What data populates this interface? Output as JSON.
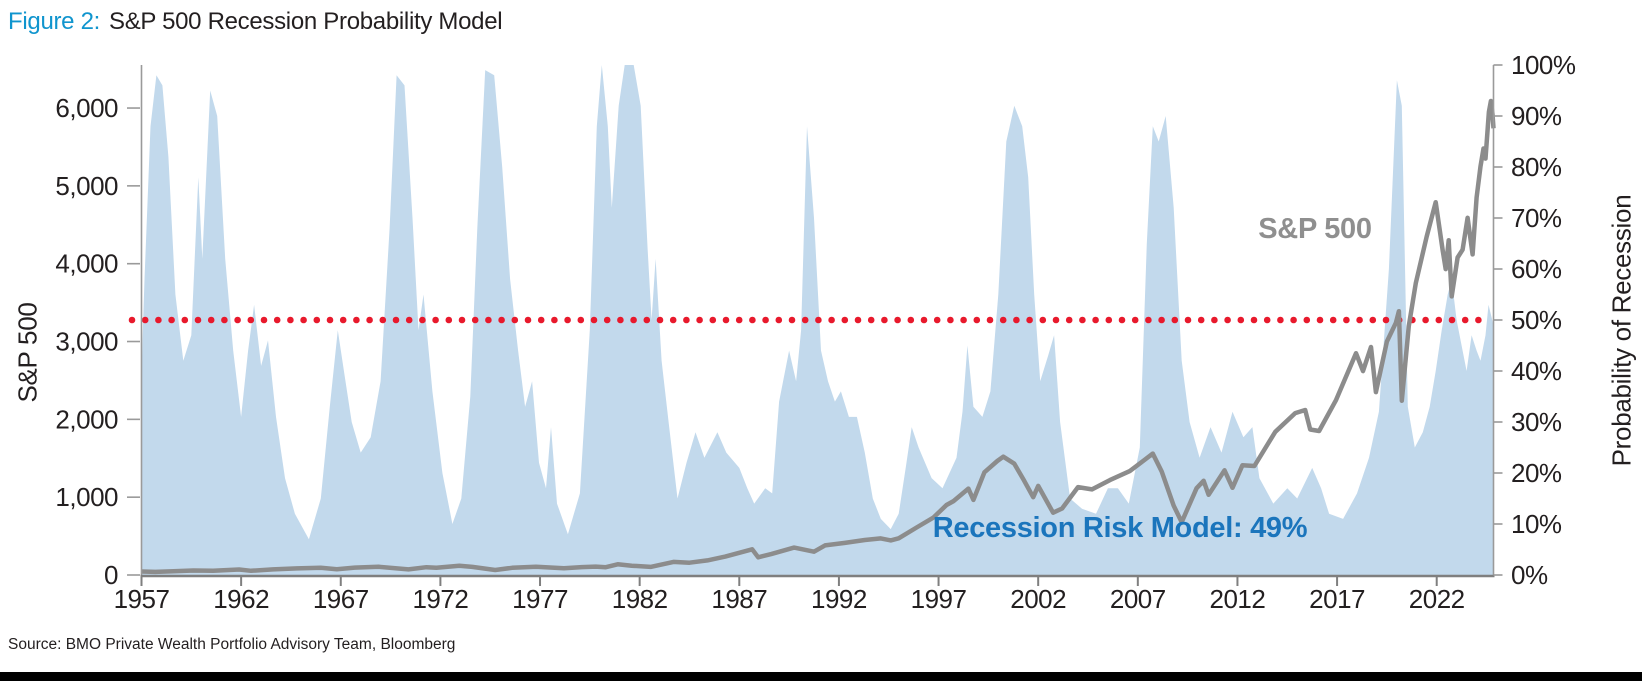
{
  "header": {
    "figure_label": "Figure 2:",
    "title": "S&P 500 Recession Probability Model"
  },
  "annotations": {
    "sp500_label": "S&P 500",
    "model_label": "Recession Risk Model: 49%"
  },
  "source": {
    "text": "Source: BMO Private Wealth Portfolio Advisory Team, Bloomberg"
  },
  "colors": {
    "area_blue": "#c2d9ec",
    "sp500_gray": "#8c8c8c",
    "threshold_red": "#e8192c",
    "figure_label_blue": "#1095ce",
    "model_label_blue": "#1b75bc",
    "axis_line_gray": "#7f7f7f",
    "text_dark": "#231f20"
  },
  "chart_data": {
    "type": "area+line",
    "title": "S&P 500 Recession Probability Model",
    "x_domain": [
      1957,
      2024.85
    ],
    "x_ticks": [
      1957,
      1962,
      1967,
      1972,
      1977,
      1982,
      1987,
      1992,
      1997,
      2002,
      2007,
      2012,
      2017,
      2022
    ],
    "grid": false,
    "left_axis": {
      "title": "S&P 500",
      "max_value": 6553,
      "ticks": [
        0,
        1000,
        2000,
        3000,
        4000,
        5000,
        6000
      ]
    },
    "right_axis": {
      "title": "Probability of Recession",
      "max_value": 100,
      "ticks": [
        0,
        10,
        20,
        30,
        40,
        50,
        60,
        70,
        80,
        90,
        100
      ]
    },
    "threshold_pct": 50,
    "final_values": {
      "recession_probability_pct": 49
    },
    "series": [
      {
        "name": "Recession Risk Model probability (%)",
        "type": "area",
        "axis": "right",
        "color": "#c2d9ec",
        "points": [
          [
            1957.0,
            40
          ],
          [
            1957.15,
            58
          ],
          [
            1957.45,
            88
          ],
          [
            1957.75,
            98
          ],
          [
            1958.05,
            96
          ],
          [
            1958.35,
            82
          ],
          [
            1958.7,
            55
          ],
          [
            1959.1,
            42
          ],
          [
            1959.5,
            47
          ],
          [
            1959.85,
            78
          ],
          [
            1960.05,
            62
          ],
          [
            1960.45,
            95
          ],
          [
            1960.8,
            90
          ],
          [
            1961.2,
            62
          ],
          [
            1961.6,
            44
          ],
          [
            1962.0,
            31
          ],
          [
            1962.35,
            44
          ],
          [
            1962.65,
            53
          ],
          [
            1963.0,
            41
          ],
          [
            1963.35,
            46
          ],
          [
            1963.75,
            31
          ],
          [
            1964.2,
            19
          ],
          [
            1964.7,
            12
          ],
          [
            1965.4,
            7
          ],
          [
            1966.0,
            15
          ],
          [
            1966.45,
            33
          ],
          [
            1966.85,
            48
          ],
          [
            1967.2,
            39
          ],
          [
            1967.55,
            30
          ],
          [
            1968.0,
            24
          ],
          [
            1968.5,
            27
          ],
          [
            1969.0,
            38
          ],
          [
            1969.45,
            68
          ],
          [
            1969.8,
            98
          ],
          [
            1970.2,
            96
          ],
          [
            1970.6,
            70
          ],
          [
            1970.9,
            48
          ],
          [
            1971.15,
            55
          ],
          [
            1971.6,
            36
          ],
          [
            1972.1,
            20
          ],
          [
            1972.6,
            10
          ],
          [
            1973.05,
            15
          ],
          [
            1973.5,
            35
          ],
          [
            1973.85,
            68
          ],
          [
            1974.25,
            99
          ],
          [
            1974.7,
            98
          ],
          [
            1975.1,
            80
          ],
          [
            1975.5,
            58
          ],
          [
            1975.9,
            44
          ],
          [
            1976.25,
            33
          ],
          [
            1976.6,
            38
          ],
          [
            1976.95,
            22
          ],
          [
            1977.3,
            17
          ],
          [
            1977.55,
            29
          ],
          [
            1977.85,
            14
          ],
          [
            1978.4,
            8
          ],
          [
            1979.0,
            16
          ],
          [
            1979.5,
            48
          ],
          [
            1979.85,
            88
          ],
          [
            1980.1,
            100
          ],
          [
            1980.4,
            88
          ],
          [
            1980.6,
            72
          ],
          [
            1980.95,
            92
          ],
          [
            1981.25,
            100
          ],
          [
            1981.7,
            100
          ],
          [
            1982.05,
            92
          ],
          [
            1982.4,
            64
          ],
          [
            1982.6,
            50
          ],
          [
            1982.8,
            62
          ],
          [
            1983.1,
            42
          ],
          [
            1983.45,
            30
          ],
          [
            1983.9,
            15
          ],
          [
            1984.35,
            22
          ],
          [
            1984.8,
            28
          ],
          [
            1985.25,
            23
          ],
          [
            1985.9,
            28
          ],
          [
            1986.35,
            24
          ],
          [
            1987.0,
            21
          ],
          [
            1987.4,
            17
          ],
          [
            1987.75,
            14
          ],
          [
            1988.3,
            17
          ],
          [
            1988.65,
            16
          ],
          [
            1989.0,
            34
          ],
          [
            1989.5,
            44
          ],
          [
            1989.85,
            38
          ],
          [
            1990.1,
            48
          ],
          [
            1990.4,
            88
          ],
          [
            1990.75,
            70
          ],
          [
            1991.1,
            44
          ],
          [
            1991.45,
            38
          ],
          [
            1991.8,
            34
          ],
          [
            1992.1,
            36
          ],
          [
            1992.5,
            31
          ],
          [
            1992.9,
            31
          ],
          [
            1993.3,
            24
          ],
          [
            1993.7,
            15
          ],
          [
            1994.1,
            11
          ],
          [
            1994.6,
            9
          ],
          [
            1995.0,
            12
          ],
          [
            1995.35,
            21
          ],
          [
            1995.65,
            29
          ],
          [
            1996.0,
            25
          ],
          [
            1996.65,
            19
          ],
          [
            1997.2,
            17
          ],
          [
            1997.9,
            23
          ],
          [
            1998.2,
            32
          ],
          [
            1998.45,
            45
          ],
          [
            1998.75,
            33
          ],
          [
            1999.2,
            31
          ],
          [
            1999.6,
            36
          ],
          [
            2000.0,
            55
          ],
          [
            2000.4,
            85
          ],
          [
            2000.8,
            92
          ],
          [
            2001.2,
            88
          ],
          [
            2001.5,
            78
          ],
          [
            2001.8,
            55
          ],
          [
            2002.1,
            38
          ],
          [
            2002.5,
            43
          ],
          [
            2002.8,
            47
          ],
          [
            2003.1,
            30
          ],
          [
            2003.6,
            15
          ],
          [
            2004.2,
            13
          ],
          [
            2004.9,
            12
          ],
          [
            2005.5,
            17
          ],
          [
            2006.0,
            17
          ],
          [
            2006.55,
            14
          ],
          [
            2007.1,
            25
          ],
          [
            2007.45,
            65
          ],
          [
            2007.75,
            88
          ],
          [
            2008.05,
            85
          ],
          [
            2008.4,
            90
          ],
          [
            2008.8,
            72
          ],
          [
            2009.2,
            42
          ],
          [
            2009.6,
            30
          ],
          [
            2010.1,
            23
          ],
          [
            2010.65,
            29
          ],
          [
            2011.2,
            24
          ],
          [
            2011.75,
            32
          ],
          [
            2012.3,
            27
          ],
          [
            2012.75,
            29
          ],
          [
            2013.1,
            19
          ],
          [
            2013.8,
            14
          ],
          [
            2014.5,
            17
          ],
          [
            2015.0,
            15
          ],
          [
            2015.75,
            21
          ],
          [
            2016.2,
            17
          ],
          [
            2016.6,
            12
          ],
          [
            2017.3,
            11
          ],
          [
            2018.0,
            16
          ],
          [
            2018.6,
            23
          ],
          [
            2019.1,
            32
          ],
          [
            2019.6,
            60
          ],
          [
            2020.0,
            97
          ],
          [
            2020.25,
            92
          ],
          [
            2020.55,
            33
          ],
          [
            2020.9,
            25
          ],
          [
            2021.3,
            28
          ],
          [
            2021.65,
            33
          ],
          [
            2021.95,
            40
          ],
          [
            2022.25,
            48
          ],
          [
            2022.55,
            55
          ],
          [
            2022.75,
            58
          ],
          [
            2023.0,
            50
          ],
          [
            2023.3,
            44
          ],
          [
            2023.5,
            40
          ],
          [
            2023.75,
            47
          ],
          [
            2024.0,
            44
          ],
          [
            2024.2,
            42
          ],
          [
            2024.45,
            47
          ],
          [
            2024.6,
            53
          ],
          [
            2024.85,
            49
          ]
        ]
      },
      {
        "name": "S&P 500",
        "type": "line",
        "axis": "left",
        "color": "#8c8c8c",
        "points": [
          [
            1957.0,
            45
          ],
          [
            1957.7,
            40
          ],
          [
            1958.6,
            48
          ],
          [
            1959.6,
            58
          ],
          [
            1960.6,
            55
          ],
          [
            1961.9,
            71
          ],
          [
            1962.5,
            54
          ],
          [
            1963.6,
            72
          ],
          [
            1964.8,
            85
          ],
          [
            1966.0,
            93
          ],
          [
            1966.8,
            74
          ],
          [
            1967.7,
            95
          ],
          [
            1968.9,
            106
          ],
          [
            1970.4,
            72
          ],
          [
            1971.3,
            100
          ],
          [
            1971.8,
            94
          ],
          [
            1972.95,
            118
          ],
          [
            1973.6,
            104
          ],
          [
            1974.75,
            64
          ],
          [
            1975.6,
            92
          ],
          [
            1976.8,
            105
          ],
          [
            1978.2,
            87
          ],
          [
            1979.1,
            102
          ],
          [
            1979.8,
            108
          ],
          [
            1980.3,
            100
          ],
          [
            1980.9,
            138
          ],
          [
            1981.6,
            120
          ],
          [
            1982.55,
            104
          ],
          [
            1983.7,
            168
          ],
          [
            1984.5,
            158
          ],
          [
            1985.4,
            188
          ],
          [
            1986.3,
            237
          ],
          [
            1987.65,
            330
          ],
          [
            1987.95,
            228
          ],
          [
            1988.6,
            268
          ],
          [
            1989.75,
            352
          ],
          [
            1990.75,
            300
          ],
          [
            1991.3,
            380
          ],
          [
            1992.3,
            412
          ],
          [
            1993.3,
            450
          ],
          [
            1994.1,
            470
          ],
          [
            1994.6,
            445
          ],
          [
            1995.0,
            472
          ],
          [
            1995.9,
            610
          ],
          [
            1996.75,
            740
          ],
          [
            1997.4,
            900
          ],
          [
            1997.75,
            950
          ],
          [
            1998.5,
            1110
          ],
          [
            1998.75,
            965
          ],
          [
            1999.3,
            1320
          ],
          [
            1999.95,
            1465
          ],
          [
            2000.25,
            1520
          ],
          [
            2000.8,
            1430
          ],
          [
            2001.3,
            1210
          ],
          [
            2001.75,
            1000
          ],
          [
            2002.0,
            1145
          ],
          [
            2002.75,
            800
          ],
          [
            2003.2,
            855
          ],
          [
            2004.0,
            1130
          ],
          [
            2004.7,
            1100
          ],
          [
            2005.6,
            1220
          ],
          [
            2006.6,
            1335
          ],
          [
            2007.75,
            1560
          ],
          [
            2008.2,
            1330
          ],
          [
            2008.8,
            890
          ],
          [
            2009.2,
            680
          ],
          [
            2009.95,
            1115
          ],
          [
            2010.3,
            1210
          ],
          [
            2010.55,
            1030
          ],
          [
            2011.35,
            1345
          ],
          [
            2011.75,
            1120
          ],
          [
            2012.25,
            1410
          ],
          [
            2012.85,
            1400
          ],
          [
            2013.9,
            1840
          ],
          [
            2014.9,
            2080
          ],
          [
            2015.4,
            2120
          ],
          [
            2015.65,
            1870
          ],
          [
            2016.1,
            1850
          ],
          [
            2016.95,
            2250
          ],
          [
            2017.95,
            2850
          ],
          [
            2018.3,
            2620
          ],
          [
            2018.7,
            2930
          ],
          [
            2018.95,
            2350
          ],
          [
            2019.5,
            3000
          ],
          [
            2019.95,
            3240
          ],
          [
            2020.1,
            3390
          ],
          [
            2020.25,
            2240
          ],
          [
            2020.6,
            3200
          ],
          [
            2020.95,
            3750
          ],
          [
            2021.5,
            4350
          ],
          [
            2021.95,
            4790
          ],
          [
            2022.3,
            4170
          ],
          [
            2022.45,
            3930
          ],
          [
            2022.6,
            4300
          ],
          [
            2022.75,
            3580
          ],
          [
            2023.05,
            4080
          ],
          [
            2023.3,
            4180
          ],
          [
            2023.55,
            4590
          ],
          [
            2023.8,
            4120
          ],
          [
            2024.0,
            4850
          ],
          [
            2024.2,
            5250
          ],
          [
            2024.35,
            5480
          ],
          [
            2024.45,
            5350
          ],
          [
            2024.62,
            5950
          ],
          [
            2024.72,
            6090
          ],
          [
            2024.8,
            5920
          ],
          [
            2024.85,
            5740
          ]
        ]
      }
    ]
  }
}
